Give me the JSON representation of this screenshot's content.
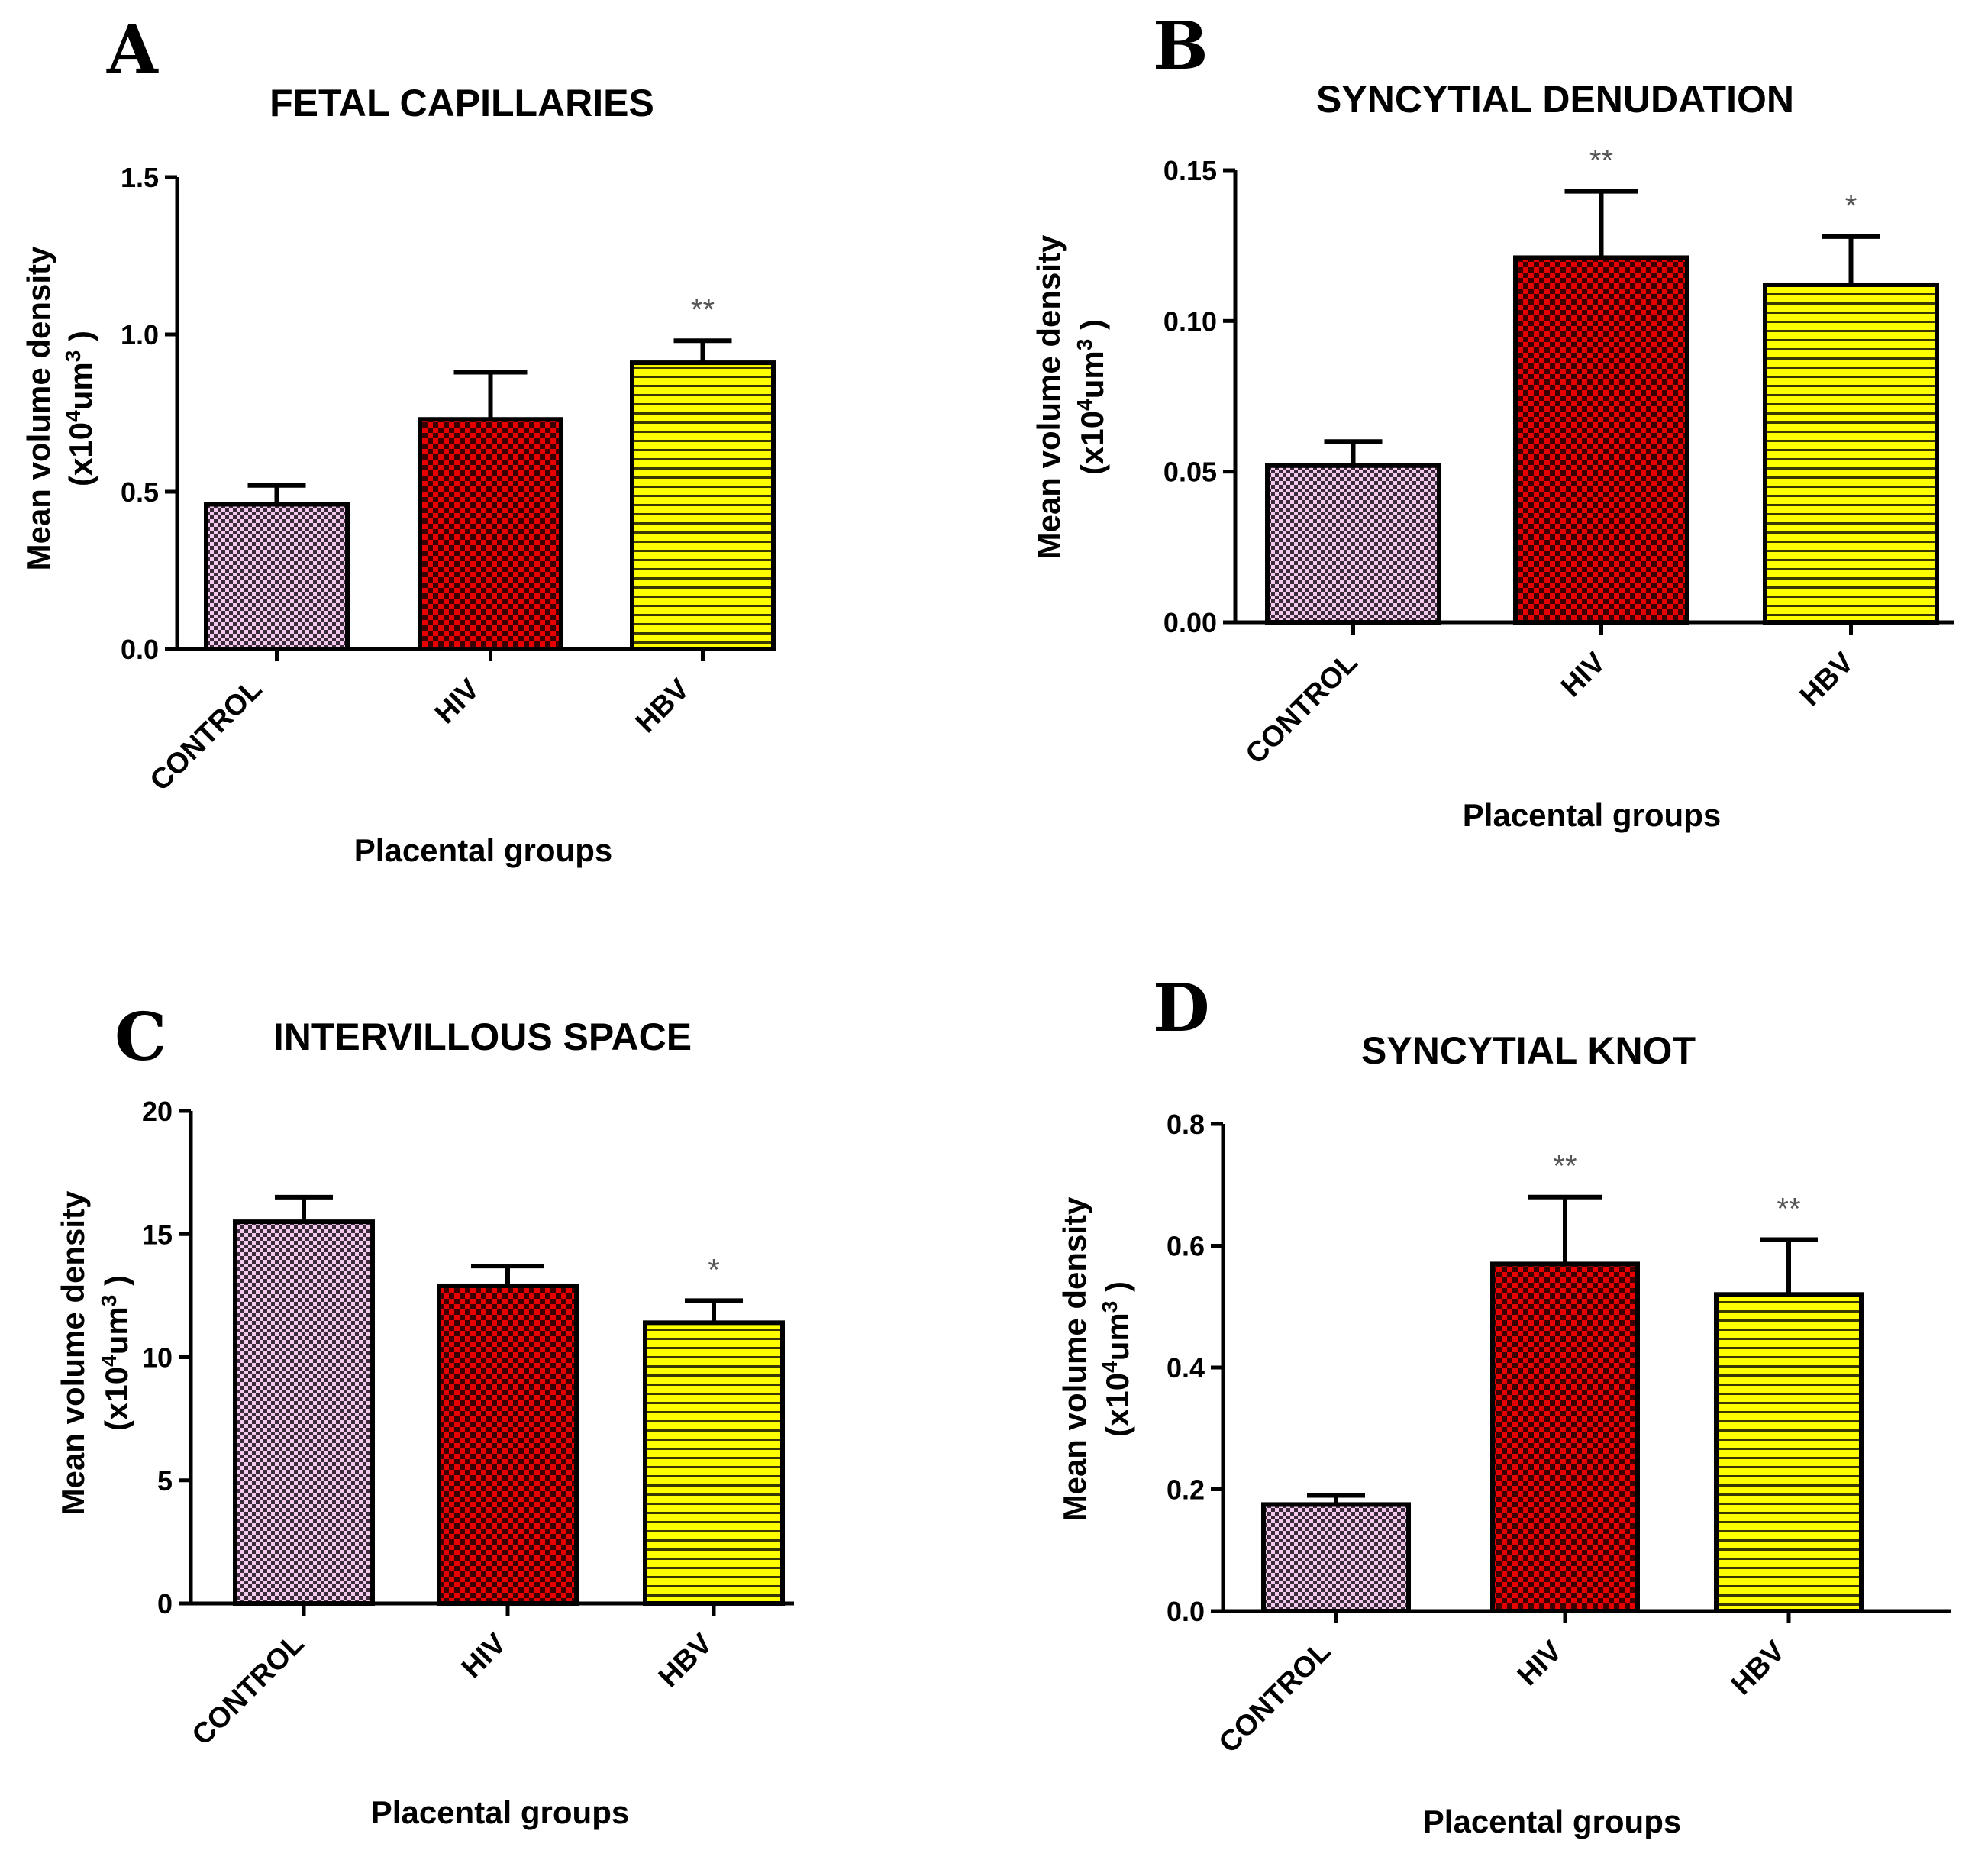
{
  "colors": {
    "control_base": "#f4c9ee",
    "control_dot": "#3a2a3a",
    "hiv_base": "#e60000",
    "hiv_dot": "#3a0000",
    "hbv_base": "#ffff00",
    "hbv_line": "#3a3a00"
  },
  "chart_data": [
    {
      "panel": "A",
      "type": "bar",
      "title": "FETAL CAPILLARIES",
      "xlabel": "Placental groups",
      "ylabel_line1": "Mean volume density",
      "ylabel_unit_prefix": "(x10",
      "ylabel_unit_sup1": "4",
      "ylabel_unit_mid": "um",
      "ylabel_unit_sup2": "3",
      "ylabel_unit_suffix": " )",
      "categories": [
        "CONTROL",
        "HIV",
        "HBV"
      ],
      "values": [
        0.46,
        0.73,
        0.91
      ],
      "errors": [
        0.06,
        0.15,
        0.07
      ],
      "significance": [
        "",
        "",
        "**"
      ],
      "ylim": [
        0,
        1.5
      ],
      "yticks": [
        "0.0",
        "0.5",
        "1.0",
        "1.5"
      ],
      "ytick_values": [
        0,
        0.5,
        1.0,
        1.5
      ]
    },
    {
      "panel": "B",
      "type": "bar",
      "title": "SYNCYTIAL DENUDATION",
      "xlabel": "Placental groups",
      "ylabel_line1": "Mean volume density",
      "ylabel_unit_prefix": "(x10",
      "ylabel_unit_sup1": "4",
      "ylabel_unit_mid": "um",
      "ylabel_unit_sup2": "3",
      "ylabel_unit_suffix": " )",
      "categories": [
        "CONTROL",
        "HIV",
        "HBV"
      ],
      "values": [
        0.052,
        0.121,
        0.112
      ],
      "errors": [
        0.008,
        0.022,
        0.016
      ],
      "significance": [
        "",
        "**",
        "*"
      ],
      "ylim": [
        0,
        0.15
      ],
      "yticks": [
        "0.00",
        "0.05",
        "0.10",
        "0.15"
      ],
      "ytick_values": [
        0,
        0.05,
        0.1,
        0.15
      ]
    },
    {
      "panel": "C",
      "type": "bar",
      "title": "INTERVILLOUS SPACE",
      "xlabel": "Placental groups",
      "ylabel_line1": "Mean volume density",
      "ylabel_unit_prefix": "(x10",
      "ylabel_unit_sup1": "4",
      "ylabel_unit_mid": "um",
      "ylabel_unit_sup2": "3",
      "ylabel_unit_suffix": " )",
      "categories": [
        "CONTROL",
        "HIV",
        "HBV"
      ],
      "values": [
        15.5,
        12.9,
        11.4
      ],
      "errors": [
        1.0,
        0.8,
        0.9
      ],
      "significance": [
        "",
        "",
        "*"
      ],
      "ylim": [
        0,
        20
      ],
      "yticks": [
        "0",
        "5",
        "10",
        "15",
        "20"
      ],
      "ytick_values": [
        0,
        5,
        10,
        15,
        20
      ]
    },
    {
      "panel": "D",
      "type": "bar",
      "title": "SYNCYTIAL KNOT",
      "xlabel": "Placental groups",
      "ylabel_line1": "Mean volume density",
      "ylabel_unit_prefix": "(x10",
      "ylabel_unit_sup1": "4",
      "ylabel_unit_mid": "um",
      "ylabel_unit_sup2": "3",
      "ylabel_unit_suffix": " )",
      "categories": [
        "CONTROL",
        "HIV",
        "HBV"
      ],
      "values": [
        0.175,
        0.57,
        0.52
      ],
      "errors": [
        0.015,
        0.11,
        0.09
      ],
      "significance": [
        "",
        "**",
        "**"
      ],
      "ylim": [
        0,
        0.8
      ],
      "yticks": [
        "0.0",
        "0.2",
        "0.4",
        "0.6",
        "0.8"
      ],
      "ytick_values": [
        0,
        0.2,
        0.4,
        0.6,
        0.8
      ]
    }
  ]
}
